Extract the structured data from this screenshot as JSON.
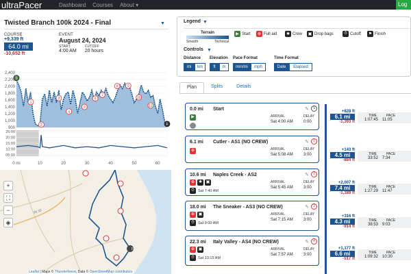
{
  "nav": {
    "brand": "ultraPacer",
    "links": [
      "Dashboard",
      "Courses",
      "About ▾"
    ],
    "login": "Log"
  },
  "race": {
    "title": "Twisted Branch 100k 2024 - Final"
  },
  "course": {
    "label": "COURSE",
    "gain": "+9,339 ft",
    "distance": "64.0 mi",
    "loss": "-10,652 ft"
  },
  "event": {
    "label": "EVENT",
    "date": "August 24, 2024",
    "start_label": "START",
    "start": "4:00 AM",
    "cutoff_label": "CUTOFF",
    "cutoff": "20 hours"
  },
  "chart_data": {
    "type": "line",
    "title": "",
    "xlabel": "",
    "ylabel": "",
    "x_ticks": [
      "0 mi",
      "10",
      "20",
      "30",
      "40",
      "50",
      "60"
    ],
    "y_ticks_elev": [
      "2,400",
      "2,200",
      "2,000",
      "1,800",
      "1,600",
      "1,400",
      "1,200",
      "1,000",
      "900"
    ],
    "y_ticks_pace": [
      "25:00",
      "20:00",
      "15:00",
      "10:00",
      "05:00"
    ],
    "ylim_elevation": [
      900,
      2450
    ],
    "xlim": [
      0,
      64
    ],
    "series": [
      {
        "name": "elevation",
        "x": [
          0,
          1,
          2,
          3,
          4,
          5,
          6,
          7,
          8,
          9,
          10,
          11,
          12,
          13,
          14,
          15,
          16,
          17,
          18,
          19,
          20,
          21,
          22,
          23,
          24,
          25,
          26,
          27,
          28,
          29,
          30,
          31,
          32,
          33,
          34,
          35,
          36,
          37,
          38,
          39,
          40,
          41,
          42,
          43,
          44,
          45,
          46,
          47,
          48,
          49,
          50,
          51,
          52,
          53,
          54,
          55,
          56,
          57,
          58,
          59,
          60,
          61,
          62,
          63,
          64
        ],
        "values": [
          2250,
          2100,
          1900,
          1500,
          2000,
          1600,
          1900,
          1300,
          1000,
          950,
          1000,
          1700,
          1850,
          1500,
          1950,
          1600,
          1900,
          1600,
          1950,
          1400,
          1700,
          1850,
          1900,
          1550,
          1950,
          1700,
          1300,
          1600,
          1900,
          1800,
          1650,
          1750,
          1950,
          1700,
          1900,
          1800,
          1950,
          1850,
          2000,
          1800,
          1700,
          1600,
          1750,
          1950,
          2100,
          2000,
          2150,
          2000,
          2050,
          1850,
          1600,
          1700,
          1850,
          2100,
          1900,
          1850,
          1950,
          1750,
          1800,
          1500,
          1300,
          1700,
          1400,
          1050,
          1000
        ]
      },
      {
        "name": "pace",
        "x": [
          0,
          5,
          9,
          10,
          10.5,
          11,
          14,
          20,
          25,
          30,
          35,
          40,
          45,
          50,
          55,
          60,
          64
        ],
        "values": [
          12,
          13,
          12,
          11,
          22,
          12,
          11,
          13,
          11,
          12,
          11,
          13,
          12,
          11,
          12,
          13,
          11
        ]
      }
    ],
    "markers": [
      {
        "label": "S",
        "x": 0,
        "elev": 2300,
        "kind": "start"
      },
      {
        "label": "1",
        "x": 6.1,
        "elev": 1620,
        "kind": "aid"
      },
      {
        "label": "2",
        "x": 10.6,
        "elev": 980,
        "kind": "aid"
      },
      {
        "label": "3",
        "x": 18.0,
        "elev": 1730,
        "kind": "aid"
      },
      {
        "label": "4",
        "x": 22.3,
        "elev": 1350,
        "kind": "aid"
      },
      {
        "label": "5",
        "x": 28.9,
        "elev": 1480,
        "kind": "aid"
      },
      {
        "label": "6",
        "x": 33.5,
        "elev": 1720,
        "kind": "aid"
      },
      {
        "label": "7",
        "x": 36.5,
        "elev": 1820,
        "kind": "aid"
      },
      {
        "label": "8",
        "x": 42.8,
        "elev": 2070,
        "kind": "aid"
      },
      {
        "label": "9",
        "x": 47.5,
        "elev": 2080,
        "kind": "aid"
      },
      {
        "label": "10",
        "x": 52,
        "elev": 1750,
        "kind": "aid"
      },
      {
        "label": "11",
        "x": 57,
        "elev": 1520,
        "kind": "aid"
      },
      {
        "label": "F",
        "x": 64,
        "elev": 1000,
        "kind": "finish"
      }
    ]
  },
  "map": {
    "road_label": "Rt 32",
    "attribution_lead": "Leaflet",
    "attribution_mid": "| Maps ©",
    "attribution_provider": "Thunderforest",
    "attribution_data": ", Data ©",
    "attribution_osm": "OpenStreetMap contributors"
  },
  "legend": {
    "title": "Legend",
    "terrain_label": "Terrain",
    "terrain_smooth": "Smooth",
    "terrain_technical": "Technical",
    "items": [
      "Start",
      "Full aid",
      "Crew",
      "Drop bags",
      "Cutoff",
      "Finish"
    ],
    "controls_title": "Controls",
    "distance_label": "Distance",
    "distance_opts": [
      "mi",
      "km"
    ],
    "elevation_label": "Elevation",
    "elevation_opts": [
      "ft",
      "m"
    ],
    "pace_label": "Pace Format",
    "pace_opts": [
      "min/mi",
      "mph"
    ],
    "time_label": "Time Format",
    "time_opts": [
      "Date",
      "Elapsed"
    ]
  },
  "tabs": [
    "Plan",
    "Splits",
    "Details"
  ],
  "waypoints": [
    {
      "dist": "0.0 mi",
      "name": "Start",
      "arrival": "Sat 4:00 AM",
      "delay": "0:00",
      "badge": "S",
      "extra": ""
    },
    {
      "dist": "6.1 mi",
      "name": "Cutler - AS1 (NO CREW)",
      "arrival": "Sat 5:08 AM",
      "delay": "3:00",
      "badge": "1",
      "extra": ""
    },
    {
      "dist": "10.6 mi",
      "name": "Naples Creek - AS2",
      "arrival": "Sat 5:45 AM",
      "delay": "3:00",
      "badge": "2",
      "extra": "Sat 7:40 AM"
    },
    {
      "dist": "18.0 mi",
      "name": "The Sneaker - AS3 (NO CREW)",
      "arrival": "Sat 7:15 AM",
      "delay": "3:00",
      "badge": "3",
      "extra": "Sat 9:00 AM"
    },
    {
      "dist": "22.3 mi",
      "name": "Italy Valley - AS4 (NO CREW)",
      "arrival": "Sat 7:57 AM",
      "delay": "3:00",
      "badge": "4",
      "extra": "Sat 10:15 AM"
    }
  ],
  "wp_labels": {
    "arrival": "ARRIVAL",
    "delay": "DELAY",
    "time": "TIME",
    "pace": "PACE"
  },
  "segments": [
    {
      "gain": "+828 ft",
      "dist": "6.1 mi",
      "loss": "-1,393 ft",
      "time": "1:07:45",
      "pace": "11:05"
    },
    {
      "gain": "+143 ft",
      "dist": "4.5 mi",
      "loss": "-884 ft",
      "time": "33:52",
      "pace": "7:34"
    },
    {
      "gain": "+2,007 ft",
      "dist": "7.4 mi",
      "loss": "-1,189 ft",
      "time": "1:27:29",
      "pace": "11:47"
    },
    {
      "gain": "+316 ft",
      "dist": "4.3 mi",
      "loss": "-914 ft",
      "time": "38:53",
      "pace": "9:03"
    },
    {
      "gain": "+1,177 ft",
      "dist": "6.6 mi",
      "loss": "-517 ft",
      "time": "1:09:32",
      "pace": "10:30"
    }
  ]
}
